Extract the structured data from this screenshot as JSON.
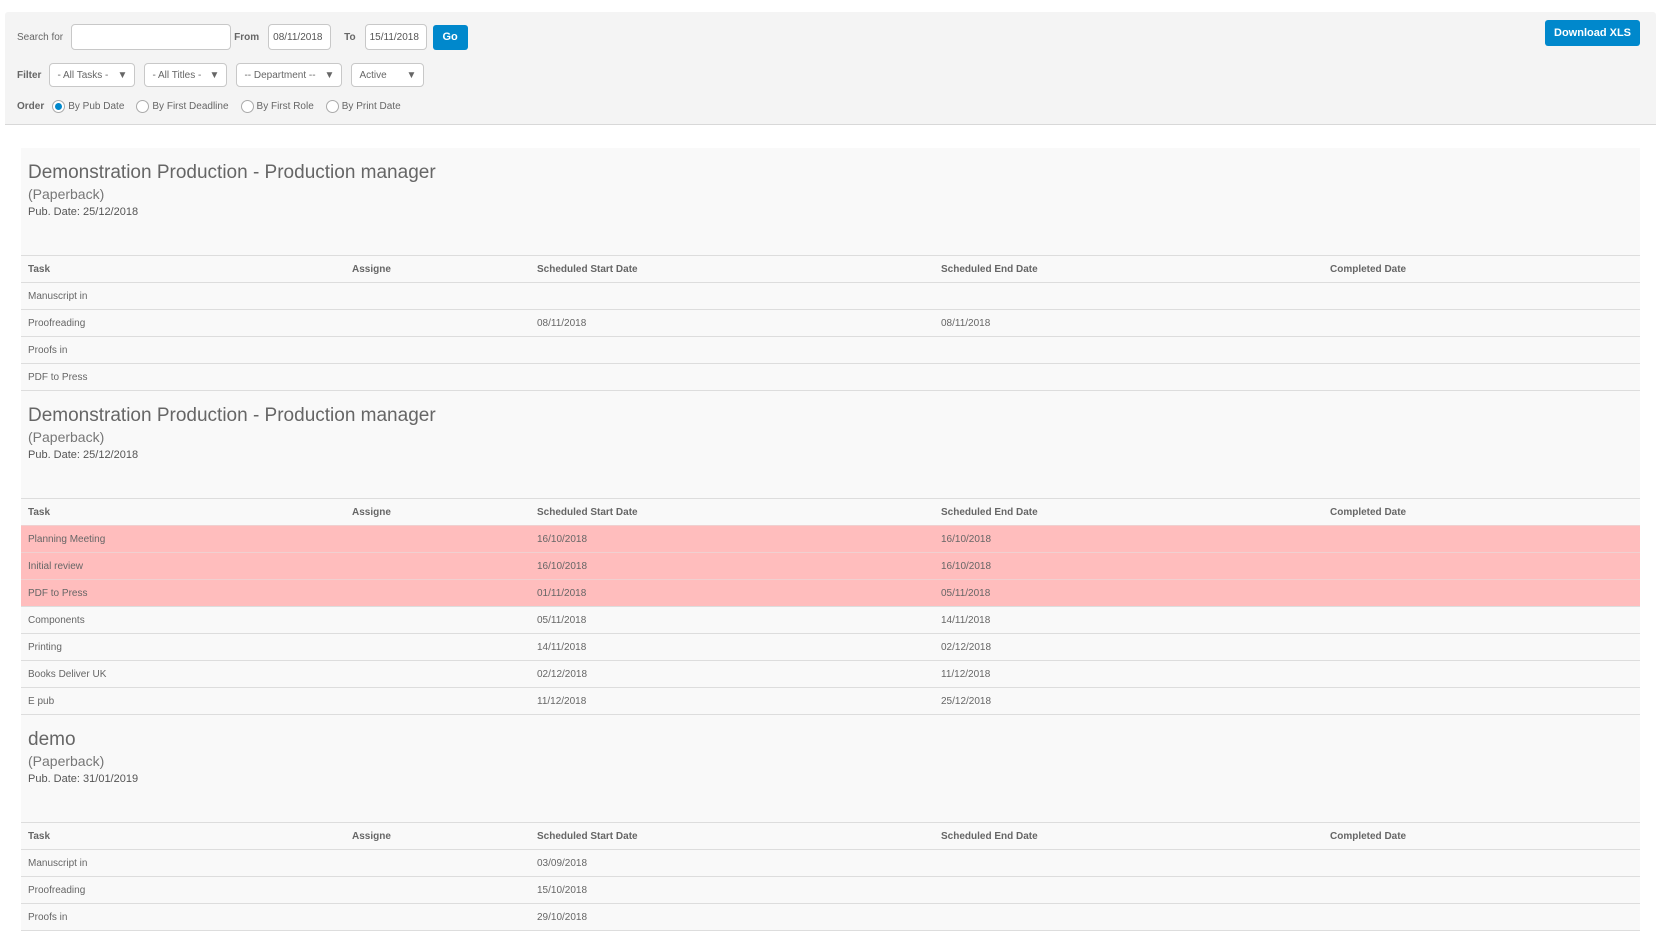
{
  "toolbar": {
    "search_label": "Search for",
    "search_value": "",
    "from_label": "From",
    "from_value": "08/11/2018",
    "to_label": "To",
    "to_value": "15/11/2018",
    "go_label": "Go",
    "download_label": "Download XLS",
    "filter_label": "Filter",
    "filters": [
      "- All Tasks -",
      "- All Titles -",
      "-- Department --",
      "Active"
    ],
    "order_label": "Order",
    "orders": [
      {
        "label": "By Pub Date",
        "selected": true
      },
      {
        "label": "By First Deadline",
        "selected": false
      },
      {
        "label": "By First Role",
        "selected": false
      },
      {
        "label": "By Print Date",
        "selected": false
      }
    ]
  },
  "columns": [
    "Task",
    "Assigne",
    "Scheduled Start Date",
    "Scheduled End Date",
    "Completed Date"
  ],
  "colors": {
    "accent": "#0088cc",
    "overdue_row": "#ffbdbd"
  },
  "sections": [
    {
      "title": "Demonstration Production - Production manager",
      "format": "(Paperback)",
      "pub_date": "Pub. Date: 25/12/2018",
      "rows": [
        {
          "task": "Manuscript in",
          "assignee": "",
          "start": "",
          "end": "",
          "completed": "",
          "overdue": false
        },
        {
          "task": "Proofreading",
          "assignee": "",
          "start": "08/11/2018",
          "end": "08/11/2018",
          "completed": "",
          "overdue": false
        },
        {
          "task": "Proofs in",
          "assignee": "",
          "start": "",
          "end": "",
          "completed": "",
          "overdue": false
        },
        {
          "task": "PDF to Press",
          "assignee": "",
          "start": "",
          "end": "",
          "completed": "",
          "overdue": false
        }
      ]
    },
    {
      "title": "Demonstration Production - Production manager",
      "format": "(Paperback)",
      "pub_date": "Pub. Date: 25/12/2018",
      "rows": [
        {
          "task": "Planning Meeting",
          "assignee": "",
          "start": "16/10/2018",
          "end": "16/10/2018",
          "completed": "",
          "overdue": true
        },
        {
          "task": "Initial review",
          "assignee": "",
          "start": "16/10/2018",
          "end": "16/10/2018",
          "completed": "",
          "overdue": true
        },
        {
          "task": "PDF to Press",
          "assignee": "",
          "start": "01/11/2018",
          "end": "05/11/2018",
          "completed": "",
          "overdue": true
        },
        {
          "task": "Components",
          "assignee": "",
          "start": "05/11/2018",
          "end": "14/11/2018",
          "completed": "",
          "overdue": false
        },
        {
          "task": "Printing",
          "assignee": "",
          "start": "14/11/2018",
          "end": "02/12/2018",
          "completed": "",
          "overdue": false
        },
        {
          "task": "Books Deliver UK",
          "assignee": "",
          "start": "02/12/2018",
          "end": "11/12/2018",
          "completed": "",
          "overdue": false
        },
        {
          "task": "E pub",
          "assignee": "",
          "start": "11/12/2018",
          "end": "25/12/2018",
          "completed": "",
          "overdue": false
        }
      ]
    },
    {
      "title": "demo",
      "format": "(Paperback)",
      "pub_date": "Pub. Date: 31/01/2019",
      "rows": [
        {
          "task": "Manuscript in",
          "assignee": "",
          "start": "03/09/2018",
          "end": "",
          "completed": "",
          "overdue": false
        },
        {
          "task": "Proofreading",
          "assignee": "",
          "start": "15/10/2018",
          "end": "",
          "completed": "",
          "overdue": false
        },
        {
          "task": "Proofs in",
          "assignee": "",
          "start": "29/10/2018",
          "end": "",
          "completed": "",
          "overdue": false
        }
      ]
    }
  ]
}
